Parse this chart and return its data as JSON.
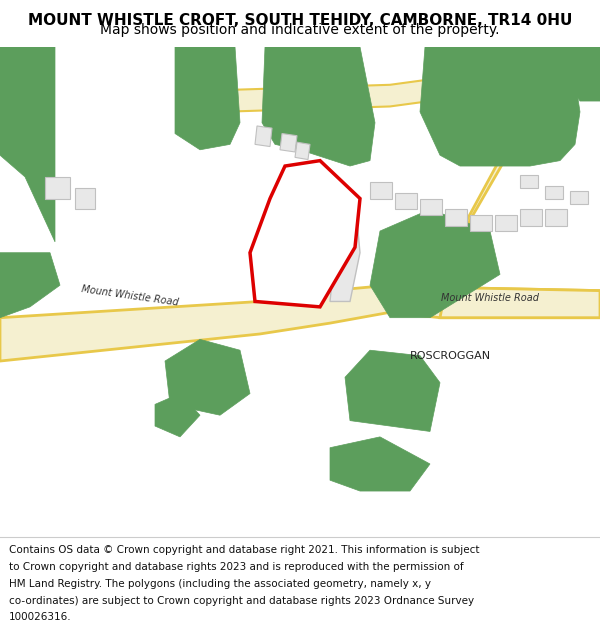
{
  "title": "MOUNT WHISTLE CROFT, SOUTH TEHIDY, CAMBORNE, TR14 0HU",
  "subtitle": "Map shows position and indicative extent of the property.",
  "footer": "Contains OS data © Crown copyright and database right 2021. This information is subject to Crown copyright and database rights 2023 and is reproduced with the permission of HM Land Registry. The polygons (including the associated geometry, namely x, y co-ordinates) are subject to Crown copyright and database rights 2023 Ordnance Survey 100026316.",
  "map_bg": "#ffffff",
  "road_color": "#f5f0d0",
  "road_border": "#e8c84a",
  "green_color": "#5c9e5c",
  "building_color": "#e8e8e8",
  "building_border": "#c0c0c0",
  "plot_border": "#dd0000",
  "plot_fill": "#ffffff",
  "road_label": "Mount Whistle Road",
  "place_label": "ROSCROGGAN",
  "title_fontsize": 11,
  "subtitle_fontsize": 10,
  "footer_fontsize": 7.5
}
